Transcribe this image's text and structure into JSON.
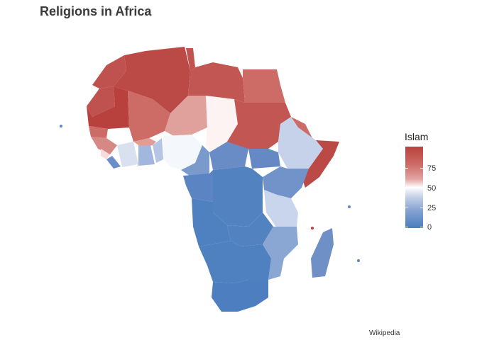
{
  "title": "Religions in Africa",
  "caption": "Wikipedia",
  "legend": {
    "title": "Islam",
    "ticks": [
      "75",
      "50",
      "25",
      "0"
    ],
    "colors": {
      "high": "#b9413d",
      "mid": "#ffffff",
      "low": "#4a7dbd"
    }
  }
}
